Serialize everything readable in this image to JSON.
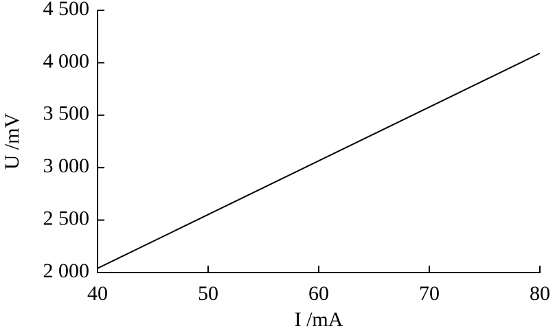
{
  "chart_data": {
    "type": "line",
    "x_label": "I /mA",
    "y_label": "U /mV",
    "x": [
      40,
      80
    ],
    "series": [
      {
        "color": "#000000",
        "values": [
          2040,
          4090
        ]
      }
    ],
    "xlim": [
      40,
      80
    ],
    "xticks": [
      40,
      50,
      60,
      70,
      80
    ],
    "ylim": [
      2000,
      4500
    ],
    "yticks": [
      {
        "value": 2000,
        "label": "2 000"
      },
      {
        "value": 2500,
        "label": "2 500"
      },
      {
        "value": 3000,
        "label": "3 000"
      },
      {
        "value": 3500,
        "label": "3 500"
      },
      {
        "value": 4000,
        "label": "4 000"
      },
      {
        "value": 4500,
        "label": "4 500"
      }
    ],
    "grid": false
  }
}
